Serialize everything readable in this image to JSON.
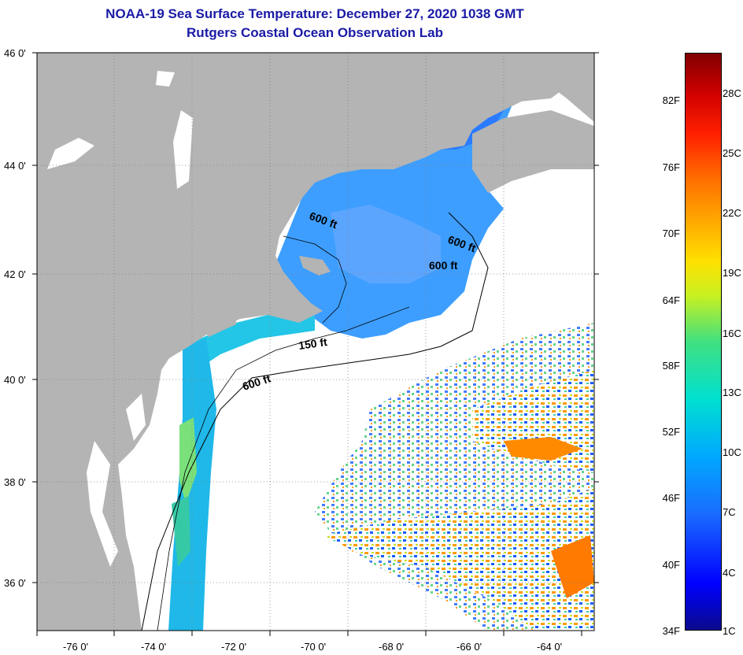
{
  "title": "NOAA-19 Sea Surface Temperature:  December 27, 2020 1038 GMT",
  "subtitle": "Rutgers Coastal Ocean Observation Lab",
  "lat_labels": [
    "46 0'",
    "44 0'",
    "42 0'",
    "40 0'",
    "38 0'",
    "36 0'"
  ],
  "lon_labels": [
    "-76 0'",
    "-74 0'",
    "-72 0'",
    "-70 0'",
    "-68 0'",
    "-66 0'",
    "-64 0'"
  ],
  "contours": [
    "600 ft",
    "600 ft",
    "600 ft",
    "150 ft",
    "600 ft"
  ],
  "colorbar": {
    "fahrenheit": [
      "82F",
      "76F",
      "70F",
      "64F",
      "58F",
      "52F",
      "46F",
      "40F",
      "34F"
    ],
    "celsius": [
      "28C",
      "25C",
      "22C",
      "19C",
      "16C",
      "13C",
      "10C",
      "7C",
      "4C",
      "1C"
    ]
  },
  "colors": {
    "title": "#1a1aa6",
    "land": "#b4b4b4",
    "ocean": "#ffffff"
  }
}
